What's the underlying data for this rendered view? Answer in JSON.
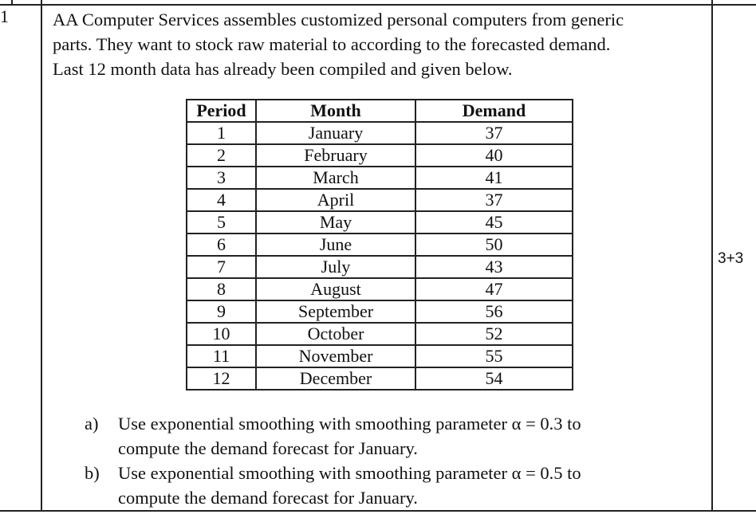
{
  "question_number": "1",
  "intro": [
    "AA Computer Services assembles customized personal computers from generic",
    "parts. They want to stock raw material to according to the forecasted demand.",
    "Last 12 month data has already been compiled and given below."
  ],
  "table": {
    "headers": [
      "Period",
      "Month",
      "Demand"
    ],
    "rows": [
      [
        "1",
        "January",
        "37"
      ],
      [
        "2",
        "February",
        "40"
      ],
      [
        "3",
        "March",
        "41"
      ],
      [
        "4",
        "April",
        "37"
      ],
      [
        "5",
        "May",
        "45"
      ],
      [
        "6",
        "June",
        "50"
      ],
      [
        "7",
        "July",
        "43"
      ],
      [
        "8",
        "August",
        "47"
      ],
      [
        "9",
        "September",
        "56"
      ],
      [
        "10",
        "October",
        "52"
      ],
      [
        "11",
        "November",
        "55"
      ],
      [
        "12",
        "December",
        "54"
      ]
    ]
  },
  "parts": [
    {
      "label": "a)",
      "lines": [
        "Use exponential smoothing with smoothing parameter α = 0.3 to",
        "compute the demand forecast for January."
      ]
    },
    {
      "label": "b)",
      "lines": [
        "Use exponential smoothing with smoothing parameter α = 0.5 to",
        "compute the demand forecast for January."
      ]
    }
  ],
  "marks": "3+3"
}
